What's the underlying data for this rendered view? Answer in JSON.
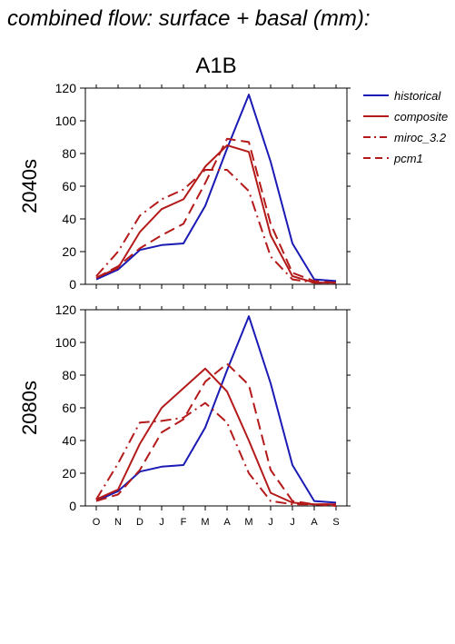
{
  "figure": {
    "heading": "combined flow: surface + basal (mm):",
    "scenario": "A1B"
  },
  "colors": {
    "historical": "#1a1ab4",
    "composite": "#b41a1a",
    "miroc_3.2": "#b41a1a",
    "pcm1": "#b41a1a"
  },
  "chart_data": [
    {
      "type": "line",
      "panel_label": "2040s",
      "categories": [
        "O",
        "N",
        "D",
        "J",
        "F",
        "M",
        "A",
        "M",
        "J",
        "J",
        "A",
        "S"
      ],
      "ylim": [
        0,
        120
      ],
      "yticks": [
        0,
        20,
        40,
        60,
        80,
        100,
        120
      ],
      "grid": false,
      "legend": "right",
      "series": [
        {
          "name": "historical",
          "style": "solid",
          "color_key": "historical",
          "values": [
            3,
            9,
            21,
            24,
            25,
            48,
            83,
            116,
            75,
            25,
            3,
            2
          ]
        },
        {
          "name": "composite",
          "style": "solid",
          "color_key": "composite",
          "values": [
            4,
            10,
            32,
            46,
            52,
            72,
            85,
            81,
            30,
            5,
            1,
            1
          ]
        },
        {
          "name": "miroc_3.2",
          "style": "dashdot",
          "color_key": "miroc_3.2",
          "values": [
            5,
            20,
            42,
            52,
            58,
            70,
            70,
            57,
            17,
            3,
            1,
            1
          ]
        },
        {
          "name": "pcm1",
          "style": "dash",
          "color_key": "pcm1",
          "values": [
            4,
            11,
            22,
            30,
            37,
            62,
            89,
            87,
            37,
            7,
            2,
            1
          ]
        }
      ]
    },
    {
      "type": "line",
      "panel_label": "2080s",
      "categories": [
        "O",
        "N",
        "D",
        "J",
        "F",
        "M",
        "A",
        "M",
        "J",
        "J",
        "A",
        "S"
      ],
      "ylim": [
        0,
        120
      ],
      "yticks": [
        0,
        20,
        40,
        60,
        80,
        100,
        120
      ],
      "grid": false,
      "legend": "none",
      "series": [
        {
          "name": "historical",
          "style": "solid",
          "color_key": "historical",
          "values": [
            3,
            9,
            21,
            24,
            25,
            48,
            83,
            116,
            75,
            25,
            3,
            2
          ]
        },
        {
          "name": "composite",
          "style": "solid",
          "color_key": "composite",
          "values": [
            4,
            10,
            38,
            60,
            72,
            84,
            70,
            40,
            8,
            2,
            1,
            1
          ]
        },
        {
          "name": "miroc_3.2",
          "style": "dashdot",
          "color_key": "miroc_3.2",
          "values": [
            4,
            26,
            51,
            52,
            54,
            63,
            51,
            20,
            3,
            1,
            1,
            1
          ]
        },
        {
          "name": "pcm1",
          "style": "dash",
          "color_key": "pcm1",
          "values": [
            3,
            7,
            22,
            45,
            53,
            76,
            87,
            74,
            22,
            3,
            1,
            0
          ]
        }
      ]
    }
  ]
}
